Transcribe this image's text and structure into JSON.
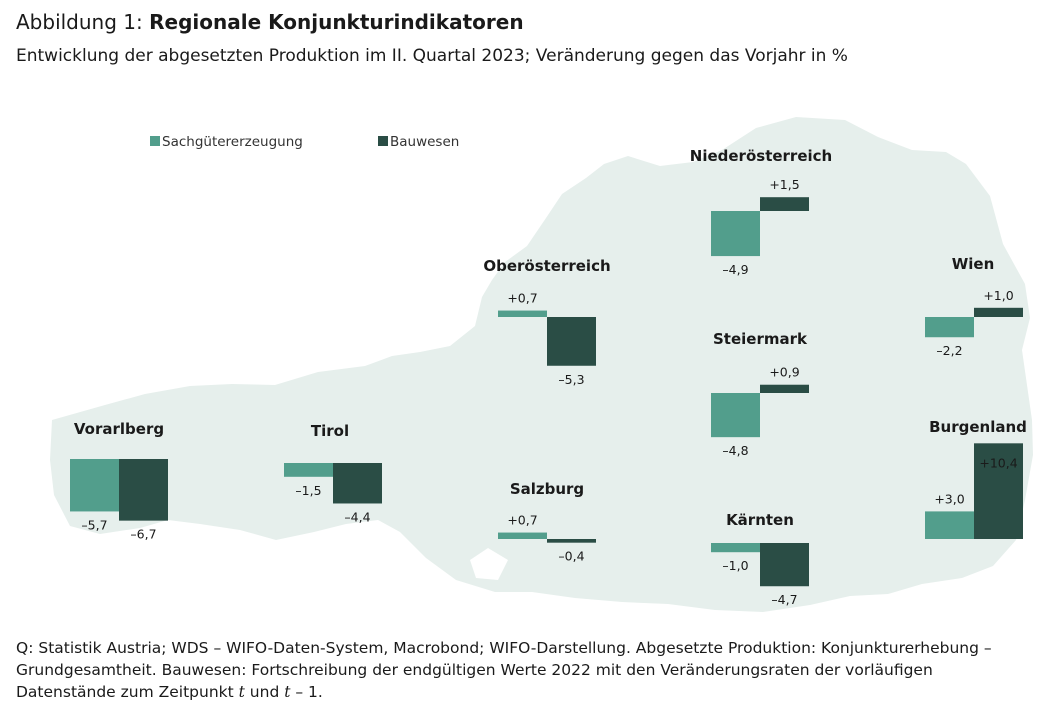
{
  "figure": {
    "prefix": "Abbildung 1: ",
    "title": "Regionale Konjunkturindikatoren",
    "subtitle": "Entwicklung der abgesetzten Produktion im II. Quartal 2023; Veränderung gegen das Vorjahr in %",
    "source_part1": "Q: Statistik Austria; WDS – WIFO-Daten-System, Macrobond; WIFO-Darstellung. Abgesetzte Produktion: Konjunkturerhebung – Grundgesamtheit. Bauwesen: Fortschreibung der endgültigen Werte 2022 mit den Veränderungsraten der vorläufigen Datenstände zum Zeitpunkt ",
    "source_t1": "t",
    "source_mid": " und ",
    "source_t2": "t",
    "source_end": " – 1."
  },
  "chart_data": {
    "type": "bar",
    "layout": "small bar charts placed on a map of Austria",
    "series": [
      {
        "name": "Sachgütererzeugung",
        "color": "#529e8c",
        "values": [
          -5.7,
          -1.5,
          0.7,
          0.7,
          -4.9,
          -4.8,
          -1.0,
          -2.2,
          3.0
        ]
      },
      {
        "name": "Bauwesen",
        "color": "#2a4d45",
        "values": [
          -6.7,
          -4.4,
          -5.3,
          -0.4,
          1.5,
          0.9,
          -4.7,
          1.0,
          10.4
        ]
      }
    ],
    "categories": [
      "Vorarlberg",
      "Tirol",
      "Oberösterreich",
      "Salzburg",
      "Niederösterreich",
      "Steiermark",
      "Kärnten",
      "Wien",
      "Burgenland"
    ],
    "value_labels": {
      "Vorarlberg": [
        "–5,7",
        "–6,7"
      ],
      "Tirol": [
        "–1,5",
        "–4,4"
      ],
      "Oberösterreich": [
        "+0,7",
        "–5,3"
      ],
      "Salzburg": [
        "+0,7",
        "–0,4"
      ],
      "Niederösterreich": [
        "–4,9",
        "+1,5"
      ],
      "Steiermark": [
        "–4,8",
        "+0,9"
      ],
      "Kärnten": [
        "–1,0",
        "–4,7"
      ],
      "Wien": [
        "–2,2",
        "+1,0"
      ],
      "Burgenland": [
        "+3,0",
        "+10,4"
      ]
    },
    "legend": {
      "position": "top-left"
    },
    "map_color": "#e6efec"
  }
}
